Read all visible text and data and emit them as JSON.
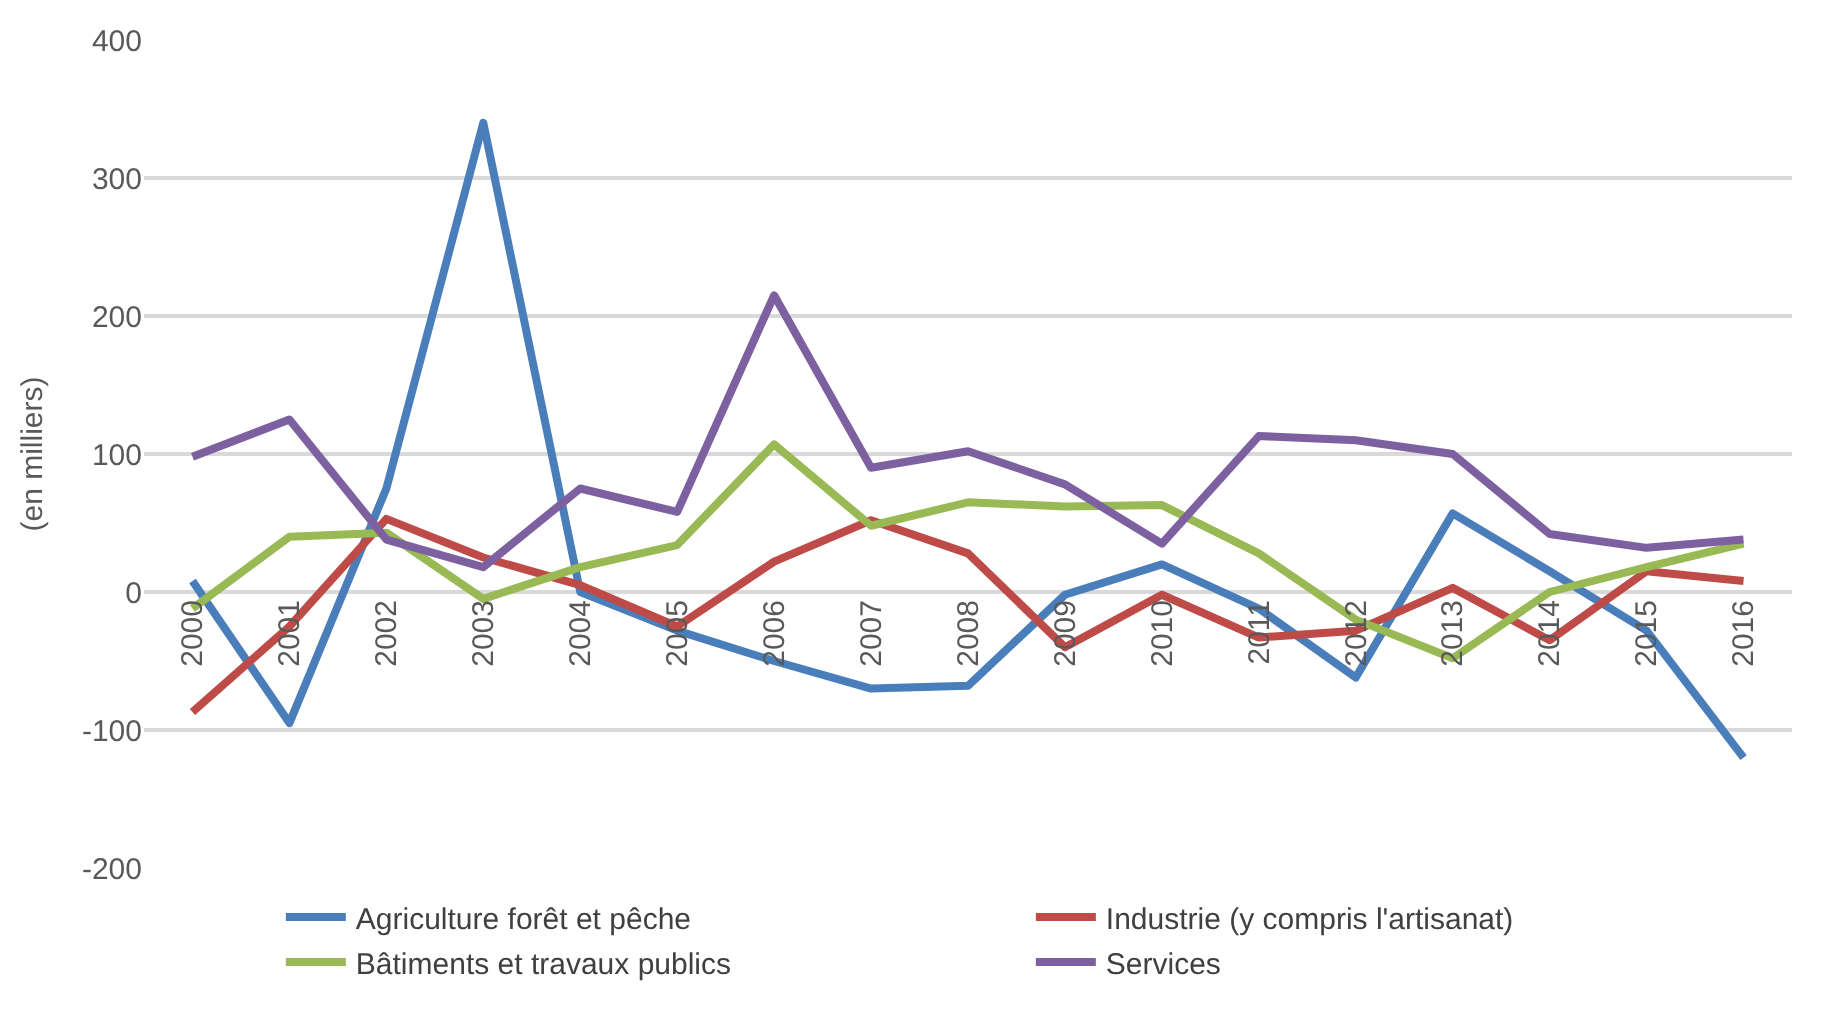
{
  "chart_data": {
    "type": "line",
    "ylabel": "(en milliers)",
    "categories": [
      "2000",
      "2001",
      "2002",
      "2003",
      "2004",
      "2005",
      "2006",
      "2007",
      "2008",
      "2009",
      "2010",
      "2011",
      "2012",
      "2013",
      "2014",
      "2015",
      "2016"
    ],
    "series": [
      {
        "name": "Agriculture forêt et pêche",
        "color": "#4a7ebb",
        "values": [
          8,
          -95,
          75,
          340,
          0,
          -28,
          -50,
          -70,
          -68,
          -2,
          20,
          -12,
          -62,
          57,
          15,
          -28,
          -120
        ]
      },
      {
        "name": "Industrie (y compris l'artisanat)",
        "color": "#be4b48",
        "values": [
          -87,
          -25,
          53,
          25,
          5,
          -25,
          22,
          52,
          28,
          -40,
          -2,
          -33,
          -28,
          3,
          -35,
          15,
          8
        ]
      },
      {
        "name": "Bâtiments et travaux publics",
        "color": "#98b954",
        "values": [
          -12,
          40,
          43,
          -5,
          18,
          34,
          107,
          48,
          65,
          62,
          63,
          28,
          -20,
          -48,
          0,
          18,
          35
        ]
      },
      {
        "name": "Services",
        "color": "#7d60a0",
        "values": [
          98,
          125,
          38,
          18,
          75,
          58,
          215,
          90,
          102,
          78,
          35,
          113,
          110,
          100,
          42,
          32,
          38
        ]
      }
    ],
    "ylim": [
      -200,
      400
    ],
    "yticks": [
      -200,
      -100,
      0,
      100,
      200,
      300,
      400
    ],
    "grid": "y",
    "legend": "bottom",
    "marker": "none",
    "line_style": "solid"
  }
}
